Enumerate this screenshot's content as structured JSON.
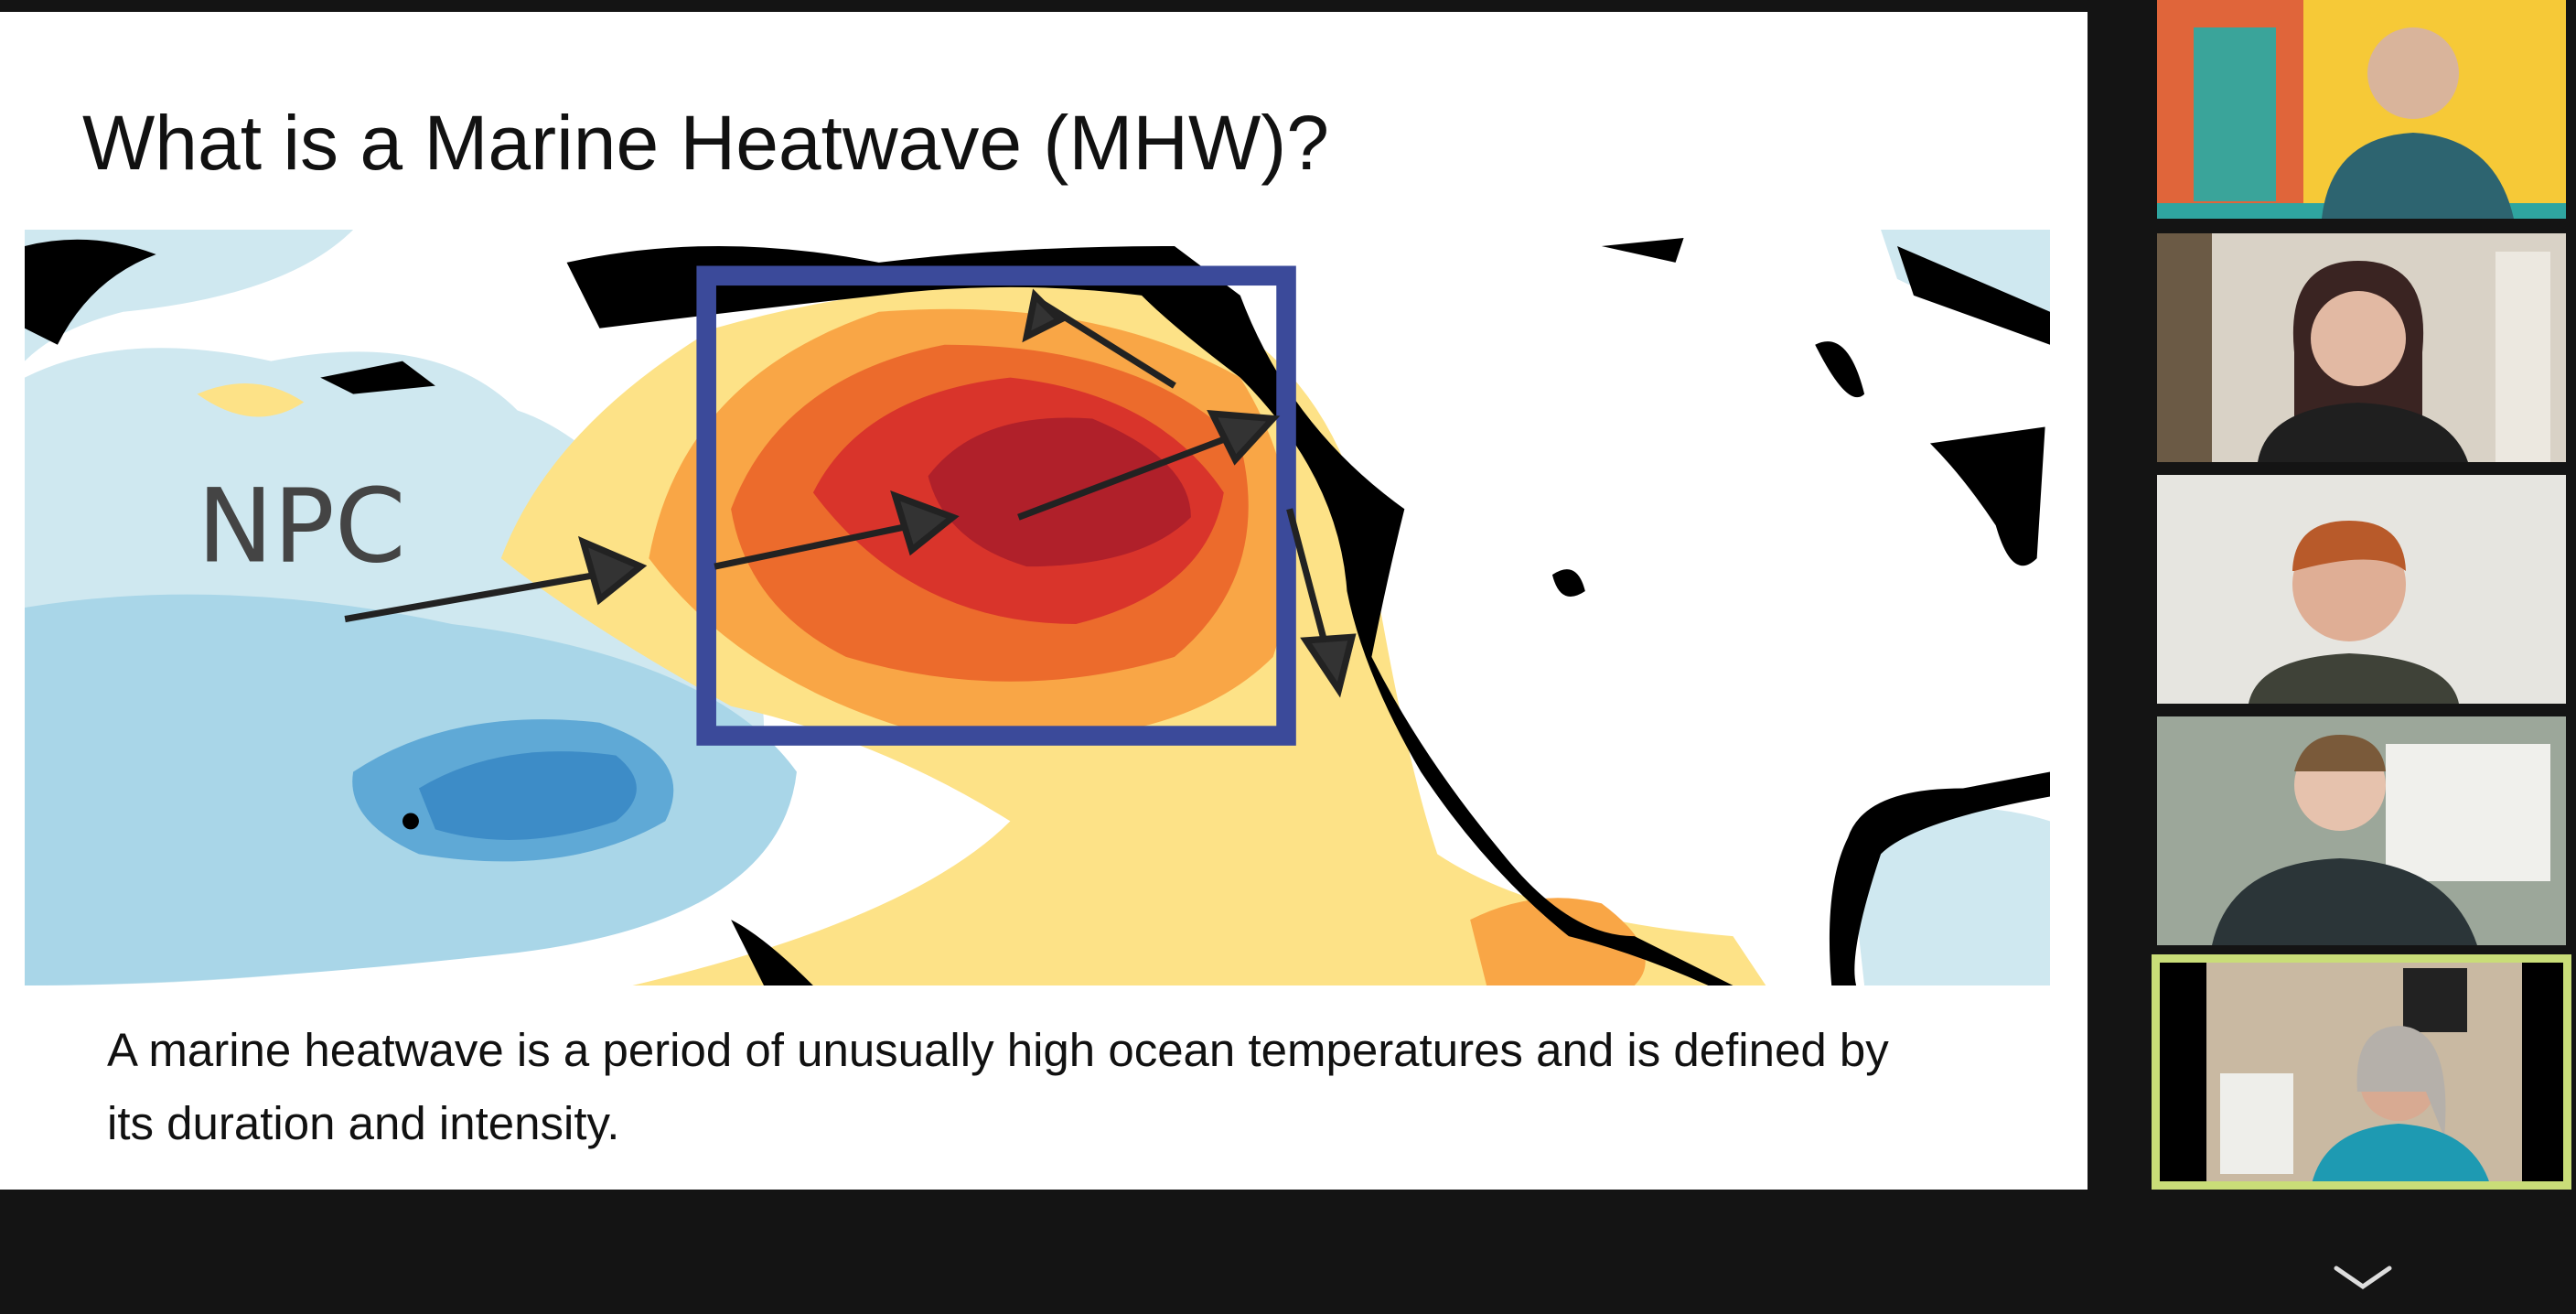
{
  "slide": {
    "title": "What is a Marine Heatwave (MHW)?",
    "map_label": "NPC",
    "body": "A marine heatwave is a period of unusually high ocean temperatures and is defined by its duration and intensity."
  }
}
